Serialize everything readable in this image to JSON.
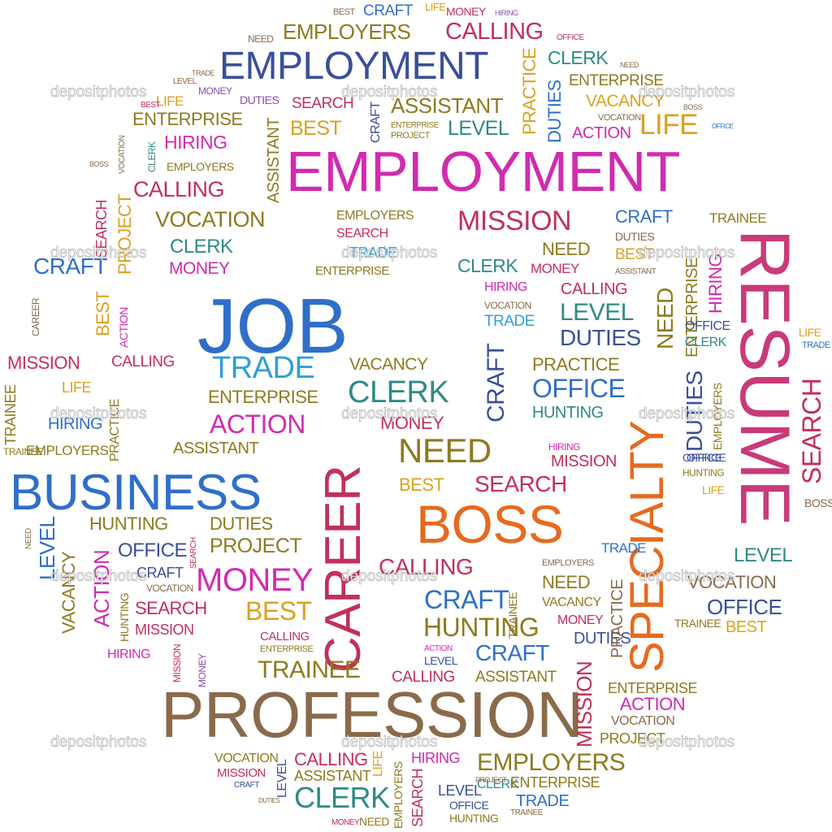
{
  "palette": {
    "blue": "#2f6fc9",
    "navy": "#3a4f9a",
    "magenta": "#d12bb0",
    "crimson": "#c2305a",
    "orange": "#e66a1e",
    "olive": "#8e7a1f",
    "brown": "#8a6a4a",
    "teal": "#2f8a85",
    "purple": "#8a4fb0",
    "gold": "#d9a21e",
    "green": "#6f8a2f",
    "sky": "#2f9fd9",
    "lime": "#9ab81e",
    "red": "#d13a3a",
    "rose": "#c93a7a"
  },
  "watermark": {
    "text": "depositphotos"
  },
  "words": {
    "w001": "CRAFT",
    "w002": "BEST",
    "w003": "LIFE",
    "w004": "MONEY",
    "w005": "HIRING",
    "w006": "EMPLOYERS",
    "w007": "CALLING",
    "w008": "NEED",
    "w009": "OFFICE",
    "w010": "EMPLOYMENT",
    "w011": "CLERK",
    "w012": "NEED",
    "w013": "TRADE",
    "w014": "LEVEL",
    "w015": "MONEY",
    "w016": "PRACTICE",
    "w017": "ENTERPRISE",
    "w018": "LIFE",
    "w019": "SEARCH",
    "w020": "ASSISTANT",
    "w021": "DUTIES",
    "w022": "VACANCY",
    "w023": "BEST",
    "w024": "BOSS",
    "w025": "DUTIES",
    "w026": "ENTERPRISE",
    "w027": "CRAFT",
    "w028": "BEST",
    "w029": "LEVEL",
    "w030": "ENTERPRISE",
    "w031": "PROJECT",
    "w032": "VOCATION",
    "w033": "ACTION",
    "w034": "LIFE",
    "w035": "HIRING",
    "w036": "OFFICE",
    "w037": "VOCATION",
    "w038": "EMPLOYMENT",
    "w039": "EMPLOYERS",
    "w040": "BOSS",
    "w041": "CLERK",
    "w042": "CALLING",
    "w043": "PROJECT",
    "w044": "SEARCH",
    "w045": "ASSISTANT",
    "w046": "VOCATION",
    "w047": "MISSION",
    "w048": "TRAINEE",
    "w049": "CRAFT",
    "w050": "EMPLOYERS",
    "w051": "SEARCH",
    "w052": "TRADE",
    "w053": "DUTIES",
    "w054": "CLERK",
    "w055": "CRAFT",
    "w056": "MONEY",
    "w057": "ENTERPRISE",
    "w058": "CLERK",
    "w059": "NEED",
    "w060": "MONEY",
    "w061": "BEST",
    "w062": "ASSISTANT",
    "w063": "RESUME",
    "w064": "JOB",
    "w065": "HIRING",
    "w066": "CALLING",
    "w067": "VOCATION",
    "w068": "LEVEL",
    "w069": "TRADE",
    "w070": "DUTIES",
    "w071": "NEED",
    "w072": "ENTERPRISE",
    "w073": "OFFICE",
    "w074": "CLERK",
    "w075": "MISSION",
    "w076": "CALLING",
    "w077": "TRADE",
    "w078": "VACANCY",
    "w079": "PRACTICE",
    "w080": "OFFICE",
    "w081": "CLERK",
    "w082": "TRAINEE",
    "w083": "LIFE",
    "w084": "ENTERPRISE",
    "w085": "MONEY",
    "w086": "CRAFT",
    "w087": "SPECIALTY",
    "w088": "DUTIES",
    "w089": "EMPLOYERS",
    "w090": "SEARCH",
    "w091": "ACTION",
    "w092": "HUNTING",
    "w093": "HIRING",
    "w094": "EMPLOYERS",
    "w095": "TRAINEE",
    "w096": "HIRING",
    "w097": "ASSISTANT",
    "w098": "NEED",
    "w099": "CAREER",
    "w100": "BUSINESS",
    "w101": "BEST",
    "w102": "SEARCH",
    "w103": "MISSION",
    "w104": "OFFICE",
    "w105": "HUNTING",
    "w106": "LIFE",
    "w107": "BOSS",
    "w108": "BOSS",
    "w109": "HUNTING",
    "w110": "OFFICE",
    "w111": "DUTIES",
    "w112": "PROJECT",
    "w113": "CRAFT",
    "w114": "VOCATION",
    "w115": "MONEY",
    "w116": "LEVEL",
    "w117": "TRADE",
    "w118": "EMPLOYERS",
    "w119": "NEED",
    "w120": "VOCATION",
    "w121": "SEARCH",
    "w122": "BEST",
    "w123": "CALLING",
    "w124": "CRAFT",
    "w125": "TRAINEE",
    "w126": "VACANCY",
    "w127": "OFFICE",
    "w128": "BEST",
    "w129": "MISSION",
    "w130": "HUNTING",
    "w131": "MONEY",
    "w132": "CALLING",
    "w133": "ENTERPRISE",
    "w134": "DUTIES",
    "w135": "ACTION",
    "w136": "LEVEL",
    "w137": "CRAFT",
    "w138": "ASSISTANT",
    "w139": "HIRING",
    "w140": "CALLING",
    "w141": "TRAINEE",
    "w142": "PROFESSION",
    "w143": "MISSION",
    "w144": "ENTERPRISE",
    "w145": "ACTION",
    "w146": "VOCATION",
    "w147": "PROJECT",
    "w148": "EMPLOYERS",
    "w149": "VOCATION",
    "w150": "MISSION",
    "w151": "CALLING",
    "w152": "LIFE",
    "w153": "HIRING",
    "w154": "ASSISTANT",
    "w155": "CLERK",
    "w156": "SEARCH",
    "w157": "LEVEL",
    "w158": "OFFICE",
    "w159": "HUNTING",
    "w160": "TRAINEE",
    "w161": "TRADE",
    "w162": "CLERK",
    "w163": "NEED",
    "w164": "MONEY",
    "w165": "ENTERPRISE",
    "w166": "EMPLOYERS",
    "w167": "PROJECT",
    "w168": "DUTIES",
    "w169": "CRAFT",
    "w170": "LEVEL",
    "w171": "ACTION",
    "w172": "HUNTING",
    "w173": "MISSION",
    "w174": "MONEY",
    "w175": "BEST",
    "w176": "PRACTICE",
    "w177": "SEARCH",
    "w178": "CAREER",
    "w179": "ACTION",
    "w180": "VACANCY",
    "w181": "TRAINEE",
    "w182": "PRACTICE",
    "w183": "LEVEL",
    "w184": "HIRING",
    "w185": "NEED",
    "w186": "OFFICE",
    "w187": "LIFE",
    "w188": "TRADE"
  }
}
